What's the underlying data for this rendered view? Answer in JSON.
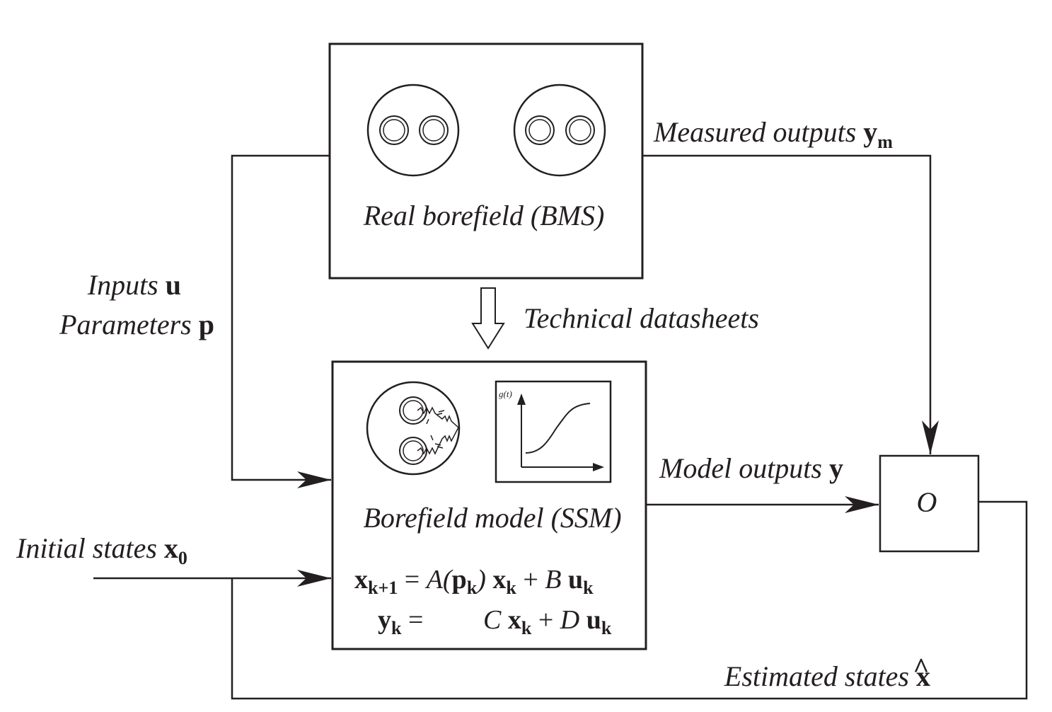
{
  "real_borefield": {
    "label": "Real borefield (BMS)"
  },
  "technical_datasheets": {
    "label": "Technical datasheets"
  },
  "measured_outputs": {
    "text": "Measured outputs ",
    "symbol": "y",
    "subscript": "m"
  },
  "inputs": {
    "text": "Inputs ",
    "symbol": "u"
  },
  "parameters": {
    "text": "Parameters ",
    "symbol": "p"
  },
  "borefield_model": {
    "label": "Borefield model (SSM)",
    "graph_label": "g(t)"
  },
  "model_outputs": {
    "text": "Model outputs ",
    "symbol": "y"
  },
  "observer": {
    "label": "O"
  },
  "initial_states": {
    "text": "Initial states ",
    "symbol": "x",
    "subscript": "0"
  },
  "estimated_states": {
    "text": "Estimated states ",
    "symbol": "x",
    "accent": "^"
  },
  "equations": {
    "eq1": {
      "lhs": "x",
      "lhs_sub": "k+1",
      "eq": " = ",
      "A": "A(",
      "p": "p",
      "p_sub": "k",
      "close": ") ",
      "x": "x",
      "x_sub": "k",
      "plus": " + ",
      "B": "B ",
      "u": "u",
      "u_sub": "k"
    },
    "eq2": {
      "lhs": "y",
      "lhs_sub": "k",
      "eq": " =",
      "C": "C ",
      "x": "x",
      "x_sub": "k",
      "plus": " + ",
      "D": "D ",
      "u": "u",
      "u_sub": "k"
    }
  }
}
